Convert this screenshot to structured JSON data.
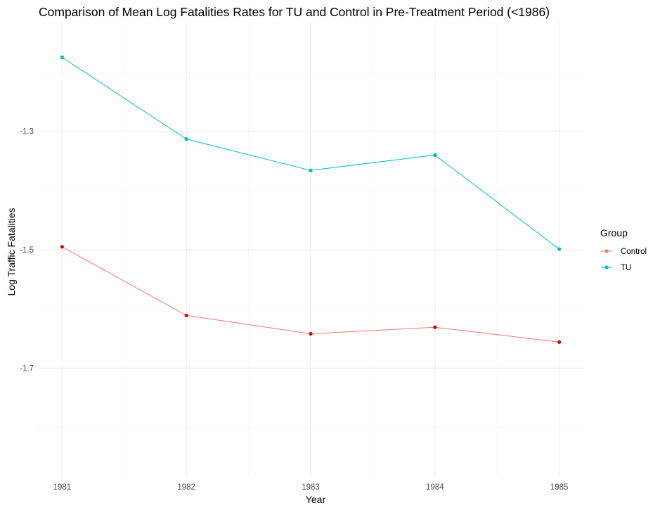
{
  "chart_data": {
    "type": "line",
    "title": "Comparison of Mean Log Fatalities Rates for TU and Control in Pre-Treatment Period (<1986)",
    "xlabel": "Year",
    "ylabel": "Log Traffic Fatalities",
    "x": [
      1981,
      1982,
      1983,
      1984,
      1985
    ],
    "ylim": [
      -1.885,
      -1.115
    ],
    "y_ticks": [
      -1.3,
      -1.5,
      -1.7
    ],
    "y_tick_labels": [
      "-1.3",
      "-1.5",
      "-1.7"
    ],
    "x_tick_labels": [
      "1981",
      "1982",
      "1983",
      "1984",
      "1985"
    ],
    "grid": true,
    "legend": {
      "title": "Group",
      "position": "right"
    },
    "series": [
      {
        "name": "Control",
        "color": "#f8766d",
        "point_color": "#e00000",
        "values": [
          -1.495,
          -1.611,
          -1.642,
          -1.631,
          -1.656
        ]
      },
      {
        "name": "TU",
        "color": "#00bfc4",
        "point_color": "#00b8c0",
        "values": [
          -1.175,
          -1.313,
          -1.366,
          -1.34,
          -1.499
        ]
      }
    ]
  }
}
